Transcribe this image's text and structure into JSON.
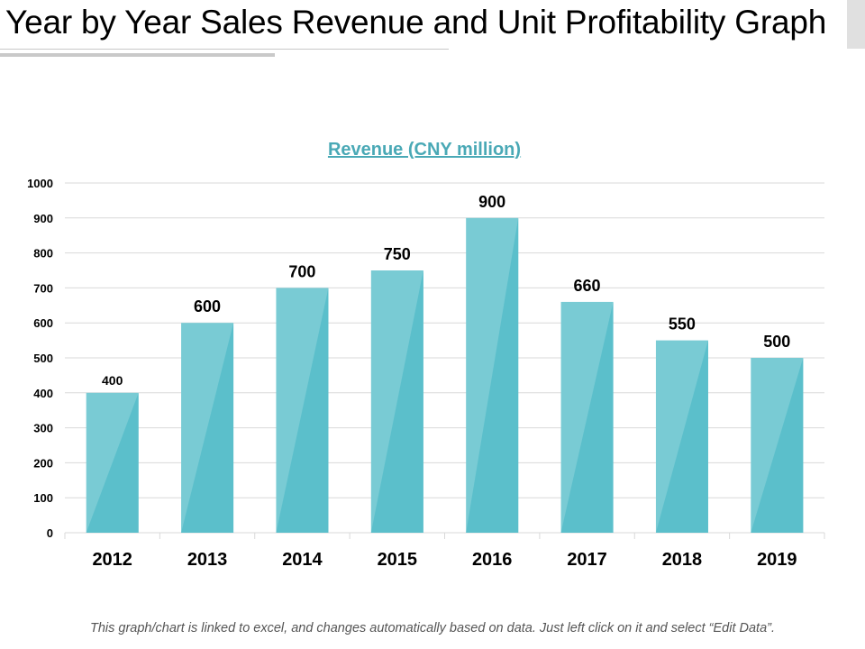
{
  "page": {
    "title": "Year by Year Sales Revenue and Unit Profitability Graph",
    "footnote": "This graph/chart is linked to excel, and changes automatically based on data. Just left click on it and select “Edit Data”."
  },
  "colors": {
    "bar_light": "#79cbd4",
    "bar_dark": "#5bbfcb",
    "chart_title": "#4aa9b6",
    "gridline": "#d9d9d9"
  },
  "chart_data": {
    "type": "bar",
    "title": "Revenue (CNY million)",
    "categories": [
      "2012",
      "2013",
      "2014",
      "2015",
      "2016",
      "2017",
      "2018",
      "2019"
    ],
    "values": [
      400,
      600,
      700,
      750,
      900,
      660,
      550,
      500
    ],
    "data_labels": [
      "400",
      "600",
      "700",
      "750",
      "900",
      "660",
      "550",
      "500"
    ],
    "ylim": [
      0,
      1000
    ],
    "yticks": [
      0,
      100,
      200,
      300,
      400,
      500,
      600,
      700,
      800,
      900,
      1000
    ],
    "ytick_labels": [
      "0",
      "100",
      "200",
      "300",
      "400",
      "500",
      "600",
      "700",
      "800",
      "900",
      "1000"
    ],
    "xlabel": "",
    "ylabel": "",
    "grid": true,
    "legend": "none"
  }
}
